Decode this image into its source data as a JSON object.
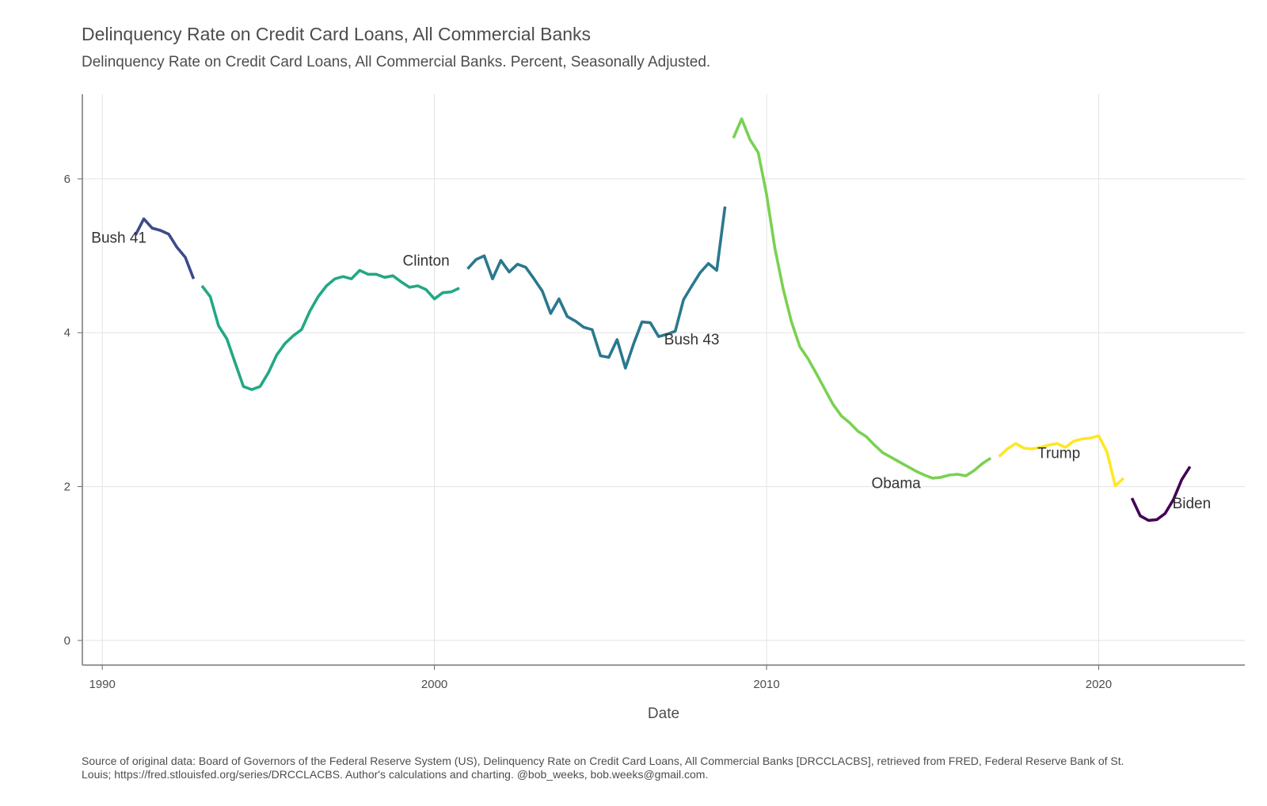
{
  "header": {
    "title": "Delinquency Rate on Credit Card Loans, All Commercial Banks",
    "subtitle": "Delinquency Rate on Credit Card Loans, All Commercial Banks. Percent, Seasonally Adjusted."
  },
  "caption": "Source of original data: Board of Governors of the Federal Reserve System (US), Delinquency Rate on Credit Card Loans, All Commercial Banks [DRCCLACBS], retrieved from FRED, Federal Reserve Bank of St. Louis; https://fred.stlouisfed.org/series/DRCCLACBS. Author's calculations and charting. @bob_weeks, bob.weeks@gmail.com.",
  "chart_data": {
    "type": "line",
    "title": "Delinquency Rate on Credit Card Loans, All Commercial Banks",
    "subtitle": "Delinquency Rate on Credit Card Loans, All Commercial Banks. Percent, Seasonally Adjusted.",
    "xlabel": "Date",
    "ylabel": "",
    "xlim": [
      1989.4,
      2024.4
    ],
    "ylim": [
      -0.32,
      7.1
    ],
    "x_ticks": [
      1990,
      2000,
      2010,
      2020
    ],
    "y_ticks": [
      0,
      2,
      4,
      6
    ],
    "grid": true,
    "legend": "none",
    "series": [
      {
        "name": "Bush 41",
        "color": "#3b4a8b",
        "x": [
          1991.0,
          1991.25,
          1991.5,
          1991.75,
          1992.0,
          1992.25,
          1992.5,
          1992.75
        ],
        "y": [
          5.27,
          5.48,
          5.36,
          5.33,
          5.28,
          5.11,
          4.98,
          4.7
        ]
      },
      {
        "name": "Clinton",
        "color": "#22a884",
        "x": [
          1993.0,
          1993.25,
          1993.5,
          1993.75,
          1994.0,
          1994.25,
          1994.5,
          1994.75,
          1995.0,
          1995.25,
          1995.5,
          1995.75,
          1996.0,
          1996.25,
          1996.5,
          1996.75,
          1997.0,
          1997.25,
          1997.5,
          1997.75,
          1998.0,
          1998.25,
          1998.5,
          1998.75,
          1999.0,
          1999.25,
          1999.5,
          1999.75,
          2000.0,
          2000.25,
          2000.5,
          2000.75
        ],
        "y": [
          4.61,
          4.47,
          4.09,
          3.92,
          3.61,
          3.3,
          3.26,
          3.3,
          3.48,
          3.71,
          3.86,
          3.96,
          4.04,
          4.28,
          4.47,
          4.61,
          4.7,
          4.73,
          4.7,
          4.81,
          4.76,
          4.76,
          4.72,
          4.74,
          4.66,
          4.59,
          4.61,
          4.56,
          4.44,
          4.52,
          4.53,
          4.58
        ]
      },
      {
        "name": "Bush 43",
        "color": "#2a788e",
        "x": [
          2001.0,
          2001.25,
          2001.5,
          2001.75,
          2002.0,
          2002.25,
          2002.5,
          2002.75,
          2003.0,
          2003.25,
          2003.5,
          2003.75,
          2004.0,
          2004.25,
          2004.5,
          2004.75,
          2005.0,
          2005.25,
          2005.5,
          2005.75,
          2006.0,
          2006.25,
          2006.5,
          2006.75,
          2007.0,
          2007.25,
          2007.5,
          2007.75,
          2008.0,
          2008.25,
          2008.5,
          2008.75
        ],
        "y": [
          4.83,
          4.95,
          5.0,
          4.7,
          4.94,
          4.79,
          4.89,
          4.85,
          4.7,
          4.54,
          4.25,
          4.44,
          4.21,
          4.15,
          4.07,
          4.04,
          3.7,
          3.68,
          3.91,
          3.54,
          3.86,
          4.14,
          4.13,
          3.95,
          3.98,
          4.02,
          4.43,
          4.61,
          4.78,
          4.9,
          4.81,
          5.64
        ]
      },
      {
        "name": "Obama",
        "color": "#7ad151",
        "x": [
          2009.0,
          2009.25,
          2009.5,
          2009.75,
          2010.0,
          2010.25,
          2010.5,
          2010.75,
          2011.0,
          2011.25,
          2011.5,
          2011.75,
          2012.0,
          2012.25,
          2012.5,
          2012.75,
          2013.0,
          2013.25,
          2013.5,
          2013.75,
          2014.0,
          2014.25,
          2014.5,
          2014.75,
          2015.0,
          2015.25,
          2015.5,
          2015.75,
          2016.0,
          2016.25,
          2016.5,
          2016.75
        ],
        "y": [
          6.53,
          6.78,
          6.51,
          6.34,
          5.8,
          5.1,
          4.57,
          4.14,
          3.82,
          3.66,
          3.47,
          3.27,
          3.07,
          2.92,
          2.83,
          2.72,
          2.65,
          2.54,
          2.44,
          2.38,
          2.32,
          2.26,
          2.2,
          2.15,
          2.11,
          2.12,
          2.15,
          2.16,
          2.14,
          2.21,
          2.3,
          2.37
        ]
      },
      {
        "name": "Trump",
        "color": "#fde725",
        "x": [
          2017.0,
          2017.25,
          2017.5,
          2017.75,
          2018.0,
          2018.25,
          2018.5,
          2018.75,
          2019.0,
          2019.25,
          2019.5,
          2019.75,
          2020.0,
          2020.25,
          2020.5,
          2020.75
        ],
        "y": [
          2.39,
          2.49,
          2.56,
          2.5,
          2.49,
          2.51,
          2.54,
          2.56,
          2.51,
          2.59,
          2.62,
          2.63,
          2.66,
          2.45,
          2.01,
          2.11
        ]
      },
      {
        "name": "Biden",
        "color": "#440154",
        "x": [
          2021.0,
          2021.25,
          2021.5,
          2021.75,
          2022.0,
          2022.25,
          2022.5,
          2022.75
        ],
        "y": [
          1.85,
          1.62,
          1.56,
          1.57,
          1.65,
          1.83,
          2.09,
          2.26
        ]
      }
    ],
    "labels": [
      {
        "text": "Bush 41",
        "x": 1990.5,
        "y": 5.17
      },
      {
        "text": "Clinton",
        "x": 1999.75,
        "y": 4.87
      },
      {
        "text": "Bush 43",
        "x": 2007.75,
        "y": 3.85
      },
      {
        "text": "Obama",
        "x": 2013.9,
        "y": 1.98
      },
      {
        "text": "Trump",
        "x": 2018.8,
        "y": 2.37
      },
      {
        "text": "Biden",
        "x": 2022.8,
        "y": 1.72
      }
    ]
  }
}
